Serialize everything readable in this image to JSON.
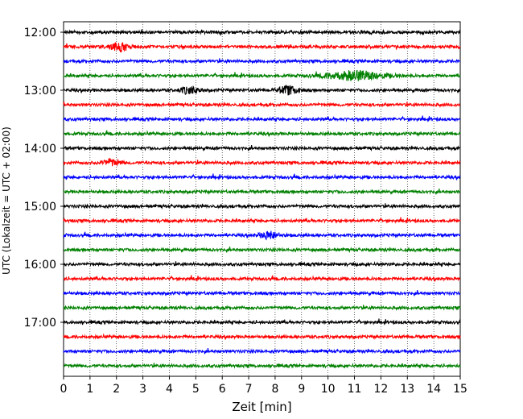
{
  "chart_data": {
    "type": "line",
    "title": "",
    "xlabel": "Zeit  [min]",
    "ylabel": "UTC (Lokalzeit = UTC + 02:00)",
    "xlim": [
      0,
      15
    ],
    "x_ticks": [
      "0",
      "1",
      "2",
      "3",
      "4",
      "5",
      "6",
      "7",
      "8",
      "9",
      "10",
      "11",
      "12",
      "13",
      "14",
      "15"
    ],
    "y_ticks": [
      "12:00",
      "13:00",
      "14:00",
      "15:00",
      "16:00",
      "17:00"
    ],
    "y_tick_hours": [
      12,
      13,
      14,
      15,
      16,
      17
    ],
    "start_time": "12:00",
    "trace_interval_min": 15,
    "trace_count": 24,
    "grid": "vertical dotted lines at each minute",
    "colors": [
      "#000000",
      "#ff0000",
      "#0000ff",
      "#008000"
    ],
    "events": [
      {
        "trace": 1,
        "t": 2.1,
        "amp": 9
      },
      {
        "trace": 3,
        "t": 11.0,
        "amp": 10
      },
      {
        "trace": 4,
        "t": 4.75,
        "amp": 7
      },
      {
        "trace": 4,
        "t": 8.5,
        "amp": 9
      },
      {
        "trace": 9,
        "t": 1.8,
        "amp": 7
      },
      {
        "trace": 14,
        "t": 7.8,
        "amp": 8
      }
    ]
  }
}
